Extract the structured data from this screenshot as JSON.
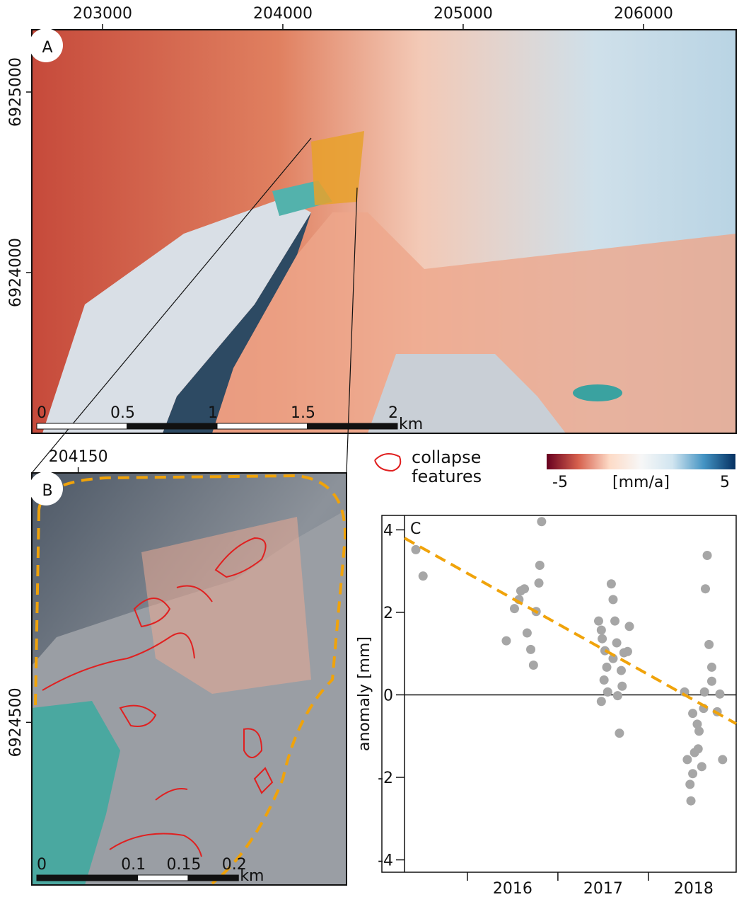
{
  "map_a": {
    "label": "A",
    "xlim": [
      202608,
      206514
    ],
    "ylim": [
      6923110,
      6925345
    ],
    "xticks": [
      203000,
      204000,
      205000,
      206000
    ],
    "yticks": [
      6924000,
      6925000
    ],
    "scale_bar": {
      "ticks": [
        0,
        0.5,
        1,
        1.5,
        2
      ],
      "unit": "km"
    }
  },
  "map_b": {
    "label": "B",
    "xlim": [
      204104,
      204416
    ],
    "ylim": [
      6924339,
      6924747
    ],
    "xticks": [
      204150
    ],
    "yticks": [
      6924500
    ],
    "scale_bar": {
      "ticks": [
        0,
        0.1,
        0.15,
        0.2
      ],
      "unit": "km"
    }
  },
  "legend": {
    "label": "collapse features"
  },
  "colorbar": {
    "label": "[mm/a]",
    "lim": [
      -5,
      5
    ],
    "ticks": [
      -5,
      5
    ],
    "colors": [
      "#67001f",
      "#d6604d",
      "#fddbc7",
      "#f7f7f7",
      "#d1e5f0",
      "#4393c3",
      "#053061"
    ]
  },
  "chart_data": {
    "type": "scatter",
    "panel_label": "C",
    "y_label": "anomaly [mm]",
    "color": "#a6a6a6",
    "x": [
      2015.43,
      2015.51,
      2016.43,
      2016.52,
      2016.59,
      2016.63,
      2016.57,
      2016.66,
      2016.7,
      2016.73,
      2016.76,
      2016.79,
      2016.8,
      2016.82,
      2017.45,
      2017.48,
      2017.49,
      2017.52,
      2017.54,
      2017.51,
      2017.48,
      2017.55,
      2017.59,
      2017.61,
      2017.63,
      2017.65,
      2017.61,
      2017.66,
      2017.68,
      2017.7,
      2017.73,
      2017.77,
      2017.79,
      2017.71,
      2018.4,
      2018.43,
      2018.46,
      2018.47,
      2018.49,
      2018.51,
      2018.54,
      2018.55,
      2018.59,
      2018.61,
      2018.63,
      2018.65,
      2018.67,
      2018.7,
      2018.7,
      2018.76,
      2018.79,
      2018.82,
      2018.62,
      2018.56,
      2018.49
    ],
    "values": [
      3.52,
      2.88,
      1.31,
      2.09,
      2.52,
      2.57,
      2.31,
      1.5,
      1.1,
      0.72,
      2.02,
      2.71,
      3.14,
      4.2,
      1.79,
      1.57,
      1.36,
      1.07,
      0.67,
      0.36,
      -0.16,
      0.07,
      2.69,
      2.31,
      1.79,
      1.26,
      0.88,
      -0.02,
      -0.93,
      0.59,
      1.02,
      1.05,
      1.66,
      0.21,
      0.07,
      -1.57,
      -2.17,
      -2.57,
      -1.91,
      -1.4,
      -0.71,
      -1.31,
      -1.74,
      -0.33,
      2.57,
      3.38,
      1.22,
      0.67,
      0.33,
      -0.41,
      0.02,
      -1.57,
      0.07,
      -0.88,
      -0.45
    ],
    "xlim": [
      2015.305,
      2018.97
    ],
    "ylim": [
      -4.3,
      4.35
    ],
    "xticks": [
      {
        "value": 2016.5,
        "label": "2016"
      },
      {
        "value": 2017.5,
        "label": "2017"
      },
      {
        "value": 2018.5,
        "label": "2018"
      }
    ],
    "x_minor_ticks": [
      2016,
      2017,
      2018
    ],
    "yticks": [
      -4,
      -2,
      0,
      2,
      4
    ],
    "reference_line": 0,
    "trend": {
      "x": [
        2015.305,
        2018.97
      ],
      "values": [
        3.8,
        -0.7
      ],
      "color": "#f0a30a"
    }
  }
}
